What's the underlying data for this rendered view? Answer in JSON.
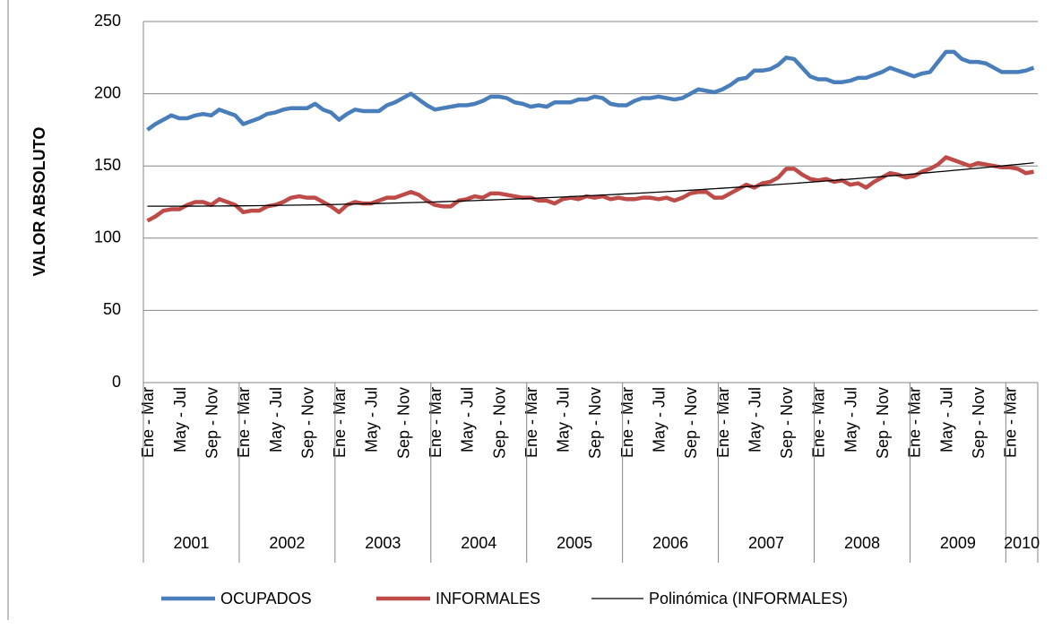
{
  "chart_data": {
    "type": "line",
    "y_axis_label": "VALOR ABSOLUTO",
    "categories": [
      "Ene - Mar",
      null,
      null,
      null,
      "May - Jul",
      null,
      null,
      null,
      "Sep - Nov",
      null,
      null,
      null,
      "Ene - Mar",
      null,
      null,
      null,
      "May - Jul",
      null,
      null,
      null,
      "Sep - Nov",
      null,
      null,
      null,
      "Ene - Mar",
      null,
      null,
      null,
      "May - Jul",
      null,
      null,
      null,
      "Sep - Nov",
      null,
      null,
      null,
      "Ene - Mar",
      null,
      null,
      null,
      "May - Jul",
      null,
      null,
      null,
      "Sep - Nov",
      null,
      null,
      null,
      "Ene - Mar",
      null,
      null,
      null,
      "May - Jul",
      null,
      null,
      null,
      "Sep - Nov",
      null,
      null,
      null,
      "Ene - Mar",
      null,
      null,
      null,
      "May - Jul",
      null,
      null,
      null,
      "Sep - Nov",
      null,
      null,
      null,
      "Ene - Mar",
      null,
      null,
      null,
      "May - Jul",
      null,
      null,
      null,
      "Sep - Nov",
      null,
      null,
      null,
      "Ene - Mar",
      null,
      null,
      null,
      "May - Jul",
      null,
      null,
      null,
      "Sep - Nov",
      null,
      null,
      null,
      "Ene - Mar",
      null,
      null,
      null,
      "May - Jul",
      null,
      null,
      null,
      "Sep - Nov",
      null,
      null,
      null,
      "Ene - Mar",
      null,
      null,
      null
    ],
    "year_groups": [
      "2001",
      "2002",
      "2003",
      "2004",
      "2005",
      "2006",
      "2007",
      "2008",
      "2009",
      "2010"
    ],
    "series": [
      {
        "name": "OCUPADOS",
        "color": "#4a7ebb",
        "values": [
          175,
          179,
          182,
          185,
          183,
          183,
          185,
          186,
          185,
          189,
          187,
          185,
          179,
          181,
          183,
          186,
          187,
          189,
          190,
          190,
          190,
          193,
          189,
          187,
          182,
          186,
          189,
          188,
          188,
          188,
          192,
          194,
          197,
          200,
          196,
          192,
          189,
          190,
          191,
          192,
          192,
          193,
          195,
          198,
          198,
          197,
          194,
          193,
          191,
          192,
          191,
          194,
          194,
          194,
          196,
          196,
          198,
          197,
          193,
          192,
          192,
          195,
          197,
          197,
          198,
          197,
          196,
          197,
          200,
          203,
          202,
          201,
          203,
          206,
          210,
          211,
          216,
          216,
          217,
          220,
          225,
          224,
          218,
          212,
          210,
          210,
          208,
          208,
          209,
          211,
          211,
          213,
          215,
          218,
          216,
          214,
          212,
          214,
          215,
          222,
          229,
          229,
          224,
          222,
          222,
          221,
          218,
          215,
          215,
          215,
          216,
          218
        ]
      },
      {
        "name": "INFORMALES",
        "color": "#be4b48",
        "values": [
          112,
          115,
          119,
          120,
          120,
          123,
          125,
          125,
          123,
          127,
          125,
          123,
          118,
          119,
          119,
          122,
          123,
          125,
          128,
          129,
          128,
          128,
          125,
          122,
          118,
          123,
          125,
          124,
          124,
          126,
          128,
          128,
          130,
          132,
          130,
          126,
          123,
          122,
          122,
          126,
          127,
          129,
          128,
          131,
          131,
          130,
          129,
          128,
          128,
          126,
          126,
          124,
          127,
          128,
          127,
          129,
          128,
          129,
          127,
          128,
          127,
          127,
          128,
          128,
          127,
          128,
          126,
          128,
          131,
          132,
          132,
          128,
          128,
          131,
          134,
          137,
          135,
          138,
          139,
          142,
          148,
          148,
          144,
          141,
          140,
          141,
          139,
          140,
          137,
          138,
          135,
          139,
          142,
          145,
          144,
          142,
          143,
          146,
          148,
          151,
          156,
          154,
          152,
          150,
          152,
          151,
          150,
          149,
          149,
          148,
          145,
          146
        ]
      }
    ],
    "trendline": {
      "name": "Polinómica (INFORMALES)",
      "series": 1,
      "color": "#000000"
    },
    "ylim": [
      0,
      250
    ],
    "yticks": [
      0,
      50,
      100,
      150,
      200,
      250
    ],
    "grid": true
  }
}
